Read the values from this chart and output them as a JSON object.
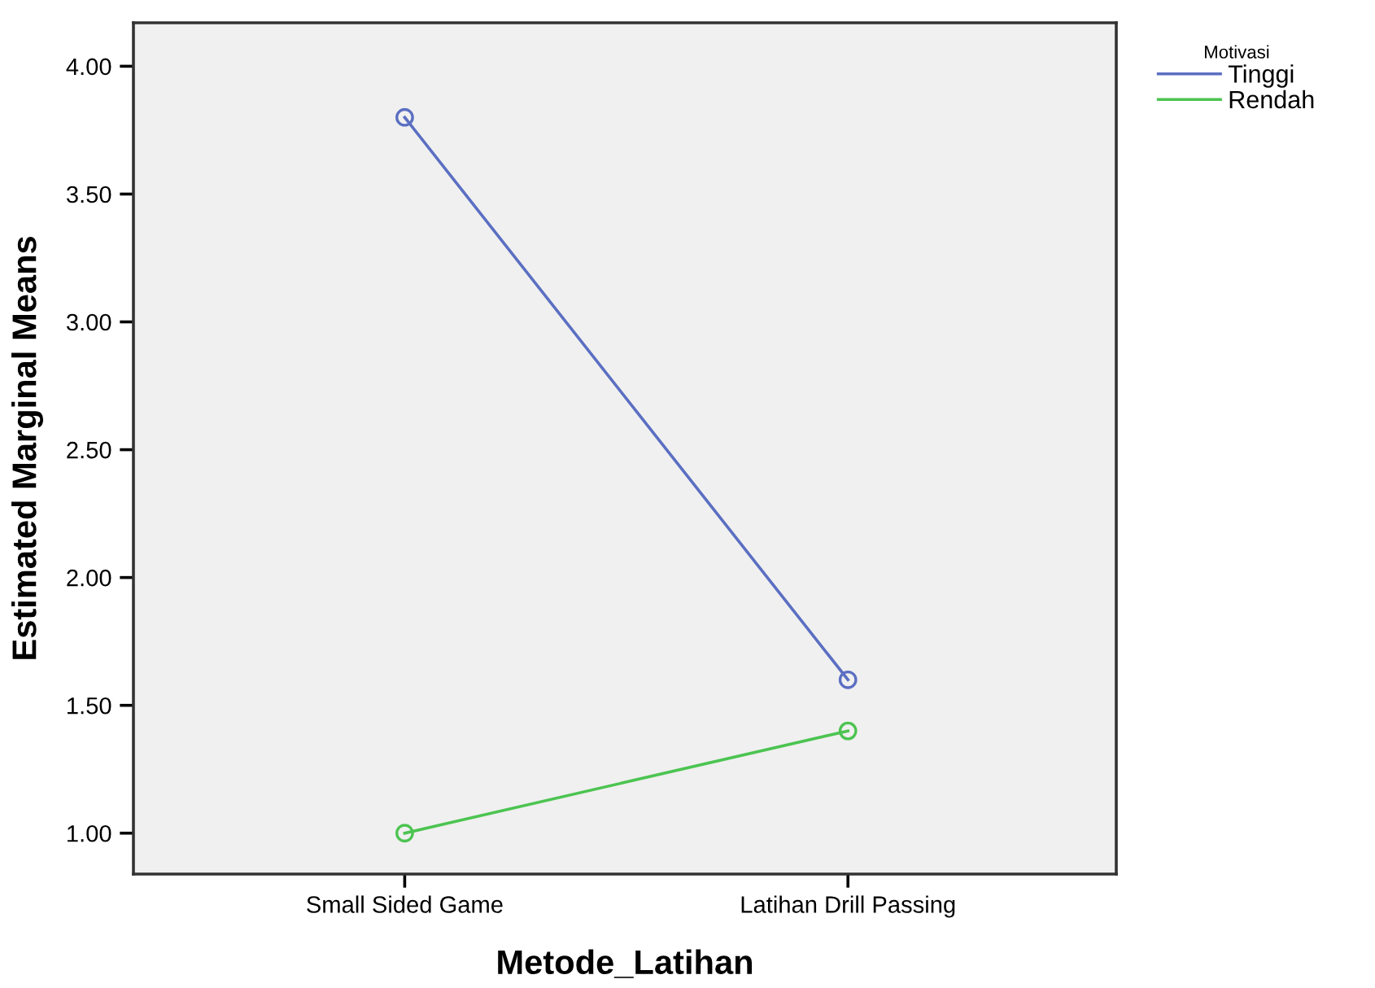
{
  "chart_data": {
    "type": "line",
    "xlabel": "Metode_Latihan",
    "ylabel": "Estimated Marginal Means",
    "legend_title": "Motivasi",
    "categories": [
      "Small Sided Game",
      "Latihan Drill Passing"
    ],
    "series": [
      {
        "name": "Tinggi",
        "color": "#5b6fc2",
        "values": [
          3.8,
          1.6
        ]
      },
      {
        "name": "Rendah",
        "color": "#4cc451",
        "values": [
          1.0,
          1.4
        ]
      }
    ],
    "ylim": [
      0.84,
      4.17
    ],
    "yticks": [
      {
        "value": 1.0,
        "label": "1.00"
      },
      {
        "value": 1.5,
        "label": "1.50"
      },
      {
        "value": 2.0,
        "label": "2.00"
      },
      {
        "value": 2.5,
        "label": "2.50"
      },
      {
        "value": 3.0,
        "label": "3.00"
      },
      {
        "value": 3.5,
        "label": "3.50"
      },
      {
        "value": 4.0,
        "label": "4.00"
      }
    ],
    "grid": false,
    "legend": "top right",
    "marker": "circle",
    "line_style": "solid"
  }
}
